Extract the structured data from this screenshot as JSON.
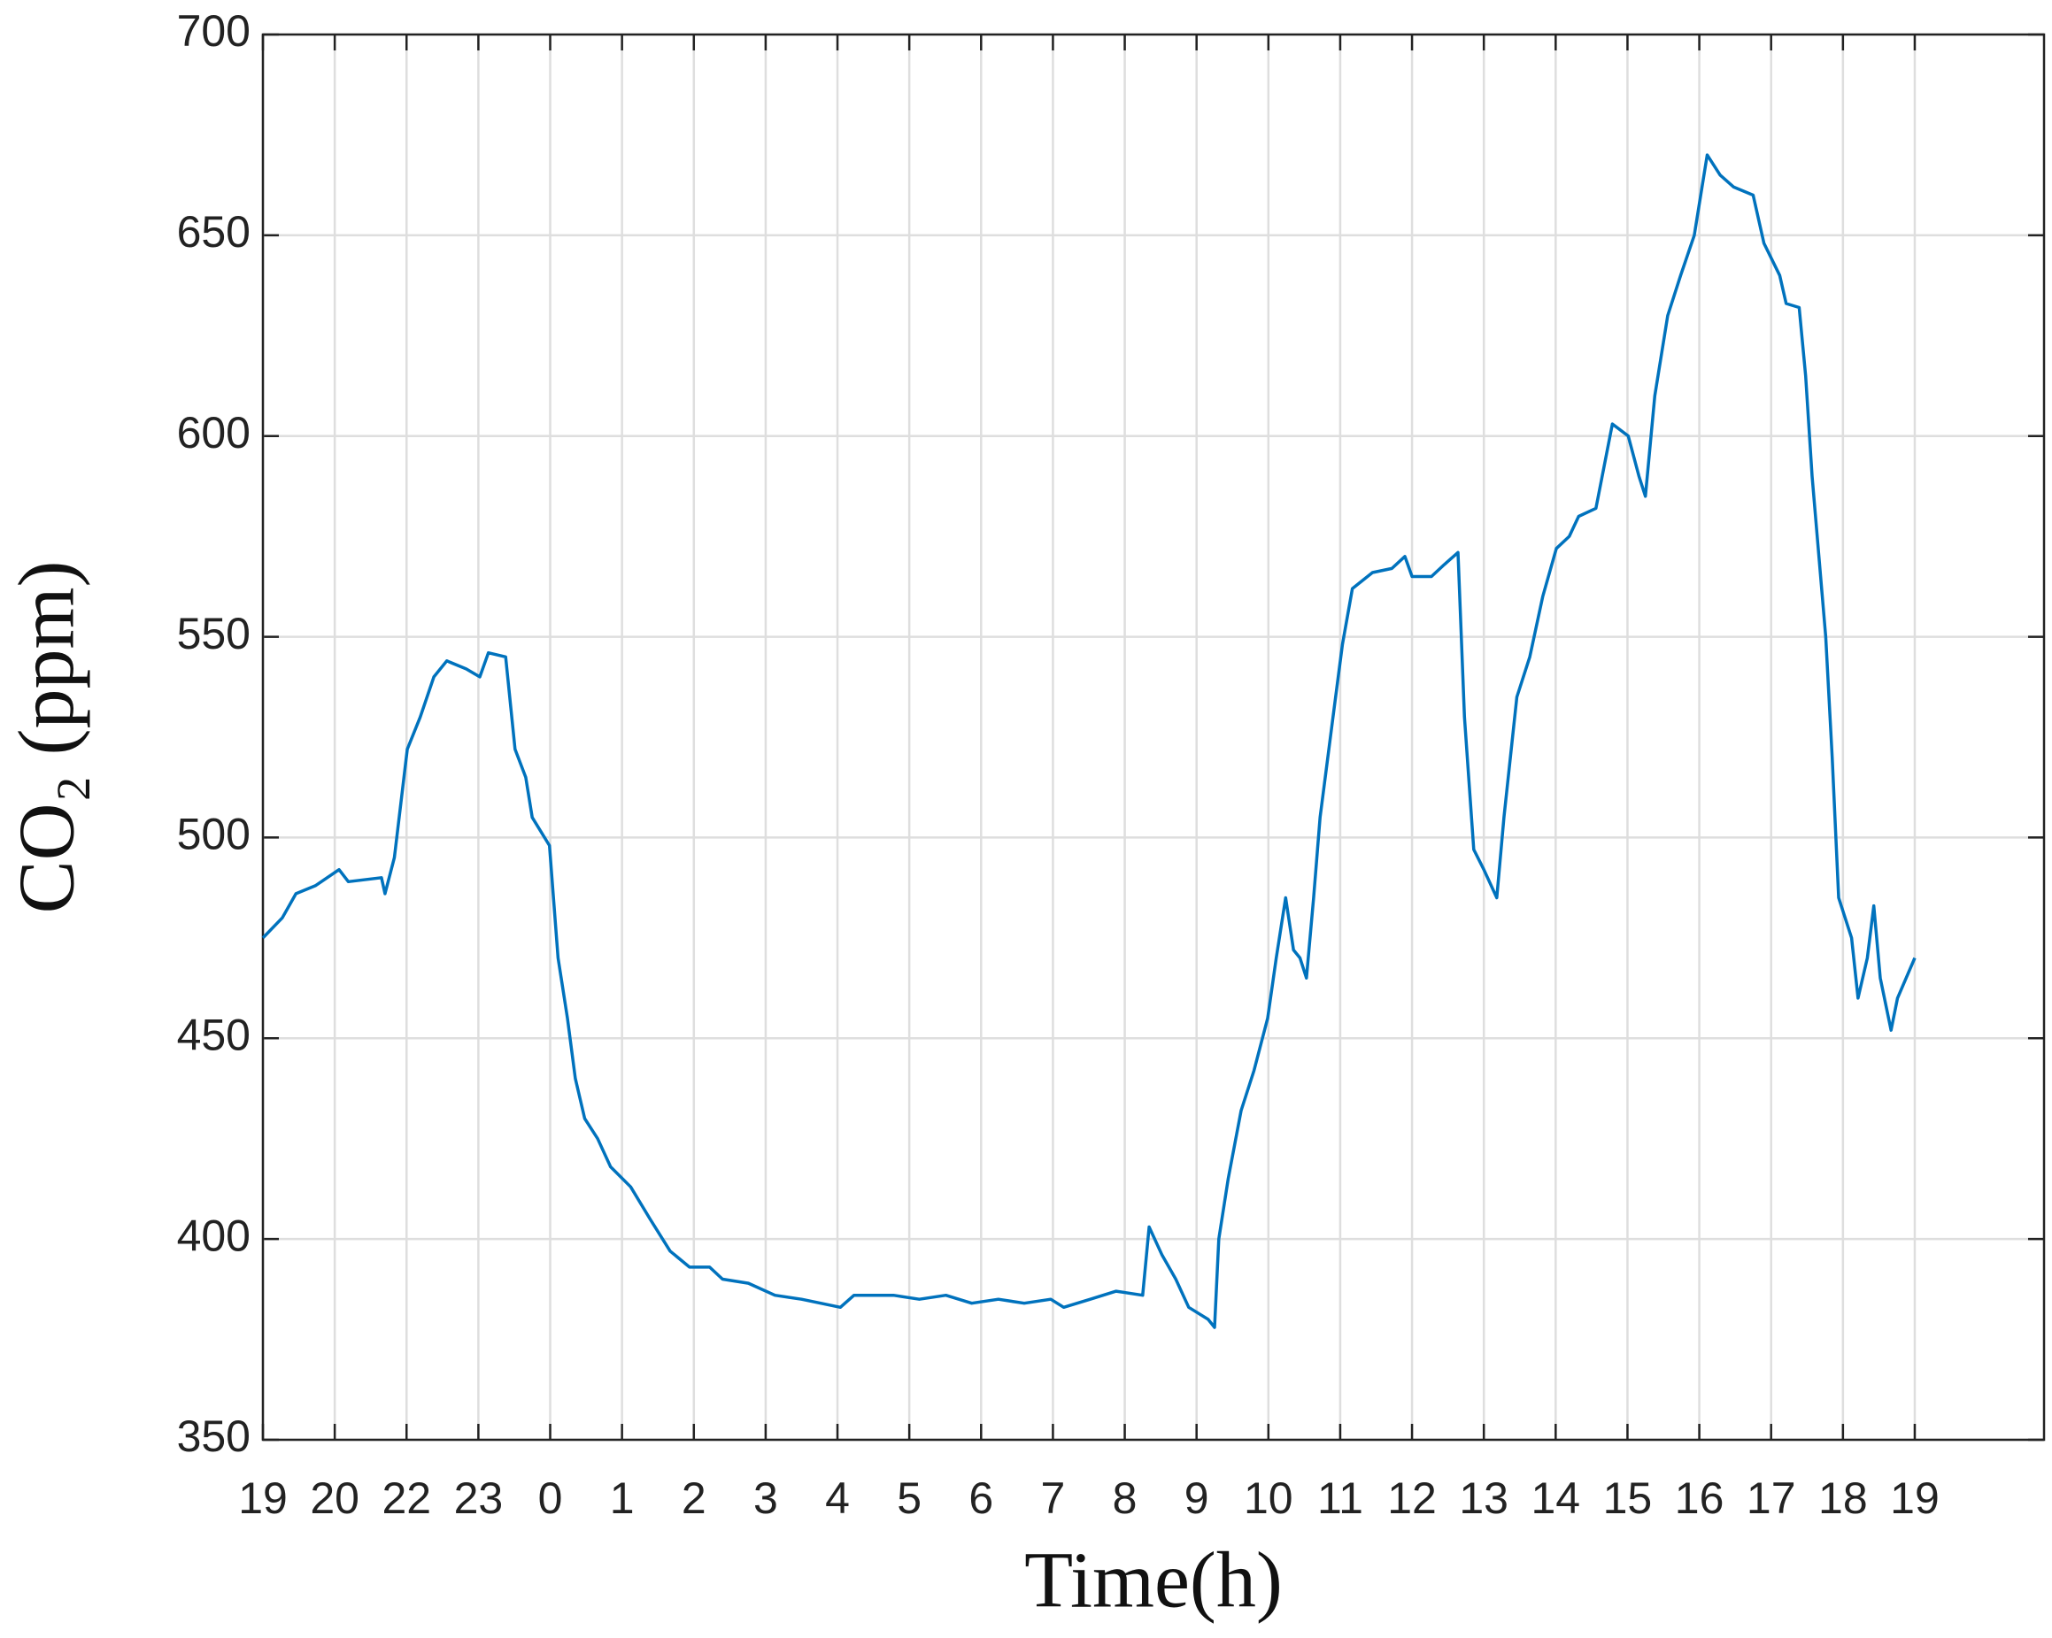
{
  "chart_data": {
    "type": "line",
    "xlabel": "Time(h)",
    "ylabel": "CO₂ (ppm)",
    "xlim": [
      0,
      24.8
    ],
    "ylim": [
      350,
      700
    ],
    "xticks": [
      {
        "value": 0,
        "label": "19"
      },
      {
        "value": 1,
        "label": "20"
      },
      {
        "value": 2,
        "label": "22"
      },
      {
        "value": 3,
        "label": "23"
      },
      {
        "value": 4,
        "label": "0"
      },
      {
        "value": 5,
        "label": "1"
      },
      {
        "value": 6,
        "label": "2"
      },
      {
        "value": 7,
        "label": "3"
      },
      {
        "value": 8,
        "label": "4"
      },
      {
        "value": 9,
        "label": "5"
      },
      {
        "value": 10,
        "label": "6"
      },
      {
        "value": 11,
        "label": "7"
      },
      {
        "value": 12,
        "label": "8"
      },
      {
        "value": 13,
        "label": "9"
      },
      {
        "value": 14,
        "label": "10"
      },
      {
        "value": 15,
        "label": "11"
      },
      {
        "value": 16,
        "label": "12"
      },
      {
        "value": 17,
        "label": "13"
      },
      {
        "value": 18,
        "label": "14"
      },
      {
        "value": 19,
        "label": "15"
      },
      {
        "value": 20,
        "label": "16"
      },
      {
        "value": 21,
        "label": "17"
      },
      {
        "value": 22,
        "label": "18"
      },
      {
        "value": 23,
        "label": "19"
      }
    ],
    "yticks": [
      350,
      400,
      450,
      500,
      550,
      600,
      650,
      700
    ],
    "grid": true,
    "x": [
      0,
      0.27,
      0.46,
      0.73,
      1.06,
      1.19,
      1.65,
      1.7,
      1.83,
      2.01,
      2.19,
      2.38,
      2.56,
      2.83,
      3.02,
      3.14,
      3.38,
      3.51,
      3.66,
      3.75,
      3.99,
      4.11,
      4.24,
      4.35,
      4.48,
      4.66,
      4.84,
      5.12,
      5.39,
      5.67,
      5.94,
      6.22,
      6.4,
      6.76,
      7.13,
      7.5,
      8.04,
      8.23,
      8.78,
      9.14,
      9.51,
      9.87,
      10.24,
      10.6,
      10.97,
      11.15,
      11.52,
      11.88,
      12.25,
      12.34,
      12.52,
      12.71,
      12.89,
      13.16,
      13.25,
      13.31,
      13.44,
      13.62,
      13.8,
      13.99,
      14.11,
      14.24,
      14.35,
      14.44,
      14.53,
      14.63,
      14.72,
      14.9,
      15.03,
      15.17,
      15.45,
      15.72,
      15.9,
      16.0,
      16.27,
      16.45,
      16.64,
      16.73,
      16.86,
      17.0,
      17.18,
      17.28,
      17.46,
      17.64,
      17.82,
      18.01,
      18.19,
      18.32,
      18.56,
      18.79,
      19.01,
      19.16,
      19.25,
      19.38,
      19.56,
      19.74,
      19.93,
      20.02,
      20.11,
      20.29,
      20.48,
      20.75,
      20.9,
      21.12,
      21.21,
      21.39,
      21.48,
      21.57,
      21.76,
      21.85,
      21.94,
      22.12,
      22.21,
      22.34,
      22.43,
      22.52,
      22.67,
      22.76,
      23.0
    ],
    "series": [
      {
        "color": "#0072bd",
        "values": [
          475,
          480,
          486,
          488,
          492,
          489,
          490,
          486,
          495,
          522,
          530,
          540,
          544,
          542,
          540,
          546,
          545,
          522,
          515,
          505,
          498,
          470,
          455,
          440,
          430,
          425,
          418,
          413,
          405,
          397,
          393,
          393,
          390,
          389,
          386,
          385,
          383,
          386,
          386,
          385,
          386,
          384,
          385,
          384,
          385,
          383,
          385,
          387,
          386,
          403,
          396,
          390,
          383,
          380,
          378,
          400,
          415,
          432,
          442,
          455,
          470,
          485,
          472,
          470,
          465,
          485,
          505,
          530,
          548,
          562,
          566,
          567,
          570,
          565,
          565,
          568,
          571,
          530,
          497,
          492,
          485,
          505,
          535,
          545,
          560,
          572,
          575,
          580,
          582,
          603,
          600,
          590,
          585,
          610,
          630,
          640,
          650,
          660,
          670,
          665,
          662,
          660,
          648,
          640,
          633,
          632,
          615,
          590,
          550,
          520,
          485,
          475,
          460,
          470,
          483,
          465,
          452,
          460,
          470
        ]
      }
    ]
  }
}
